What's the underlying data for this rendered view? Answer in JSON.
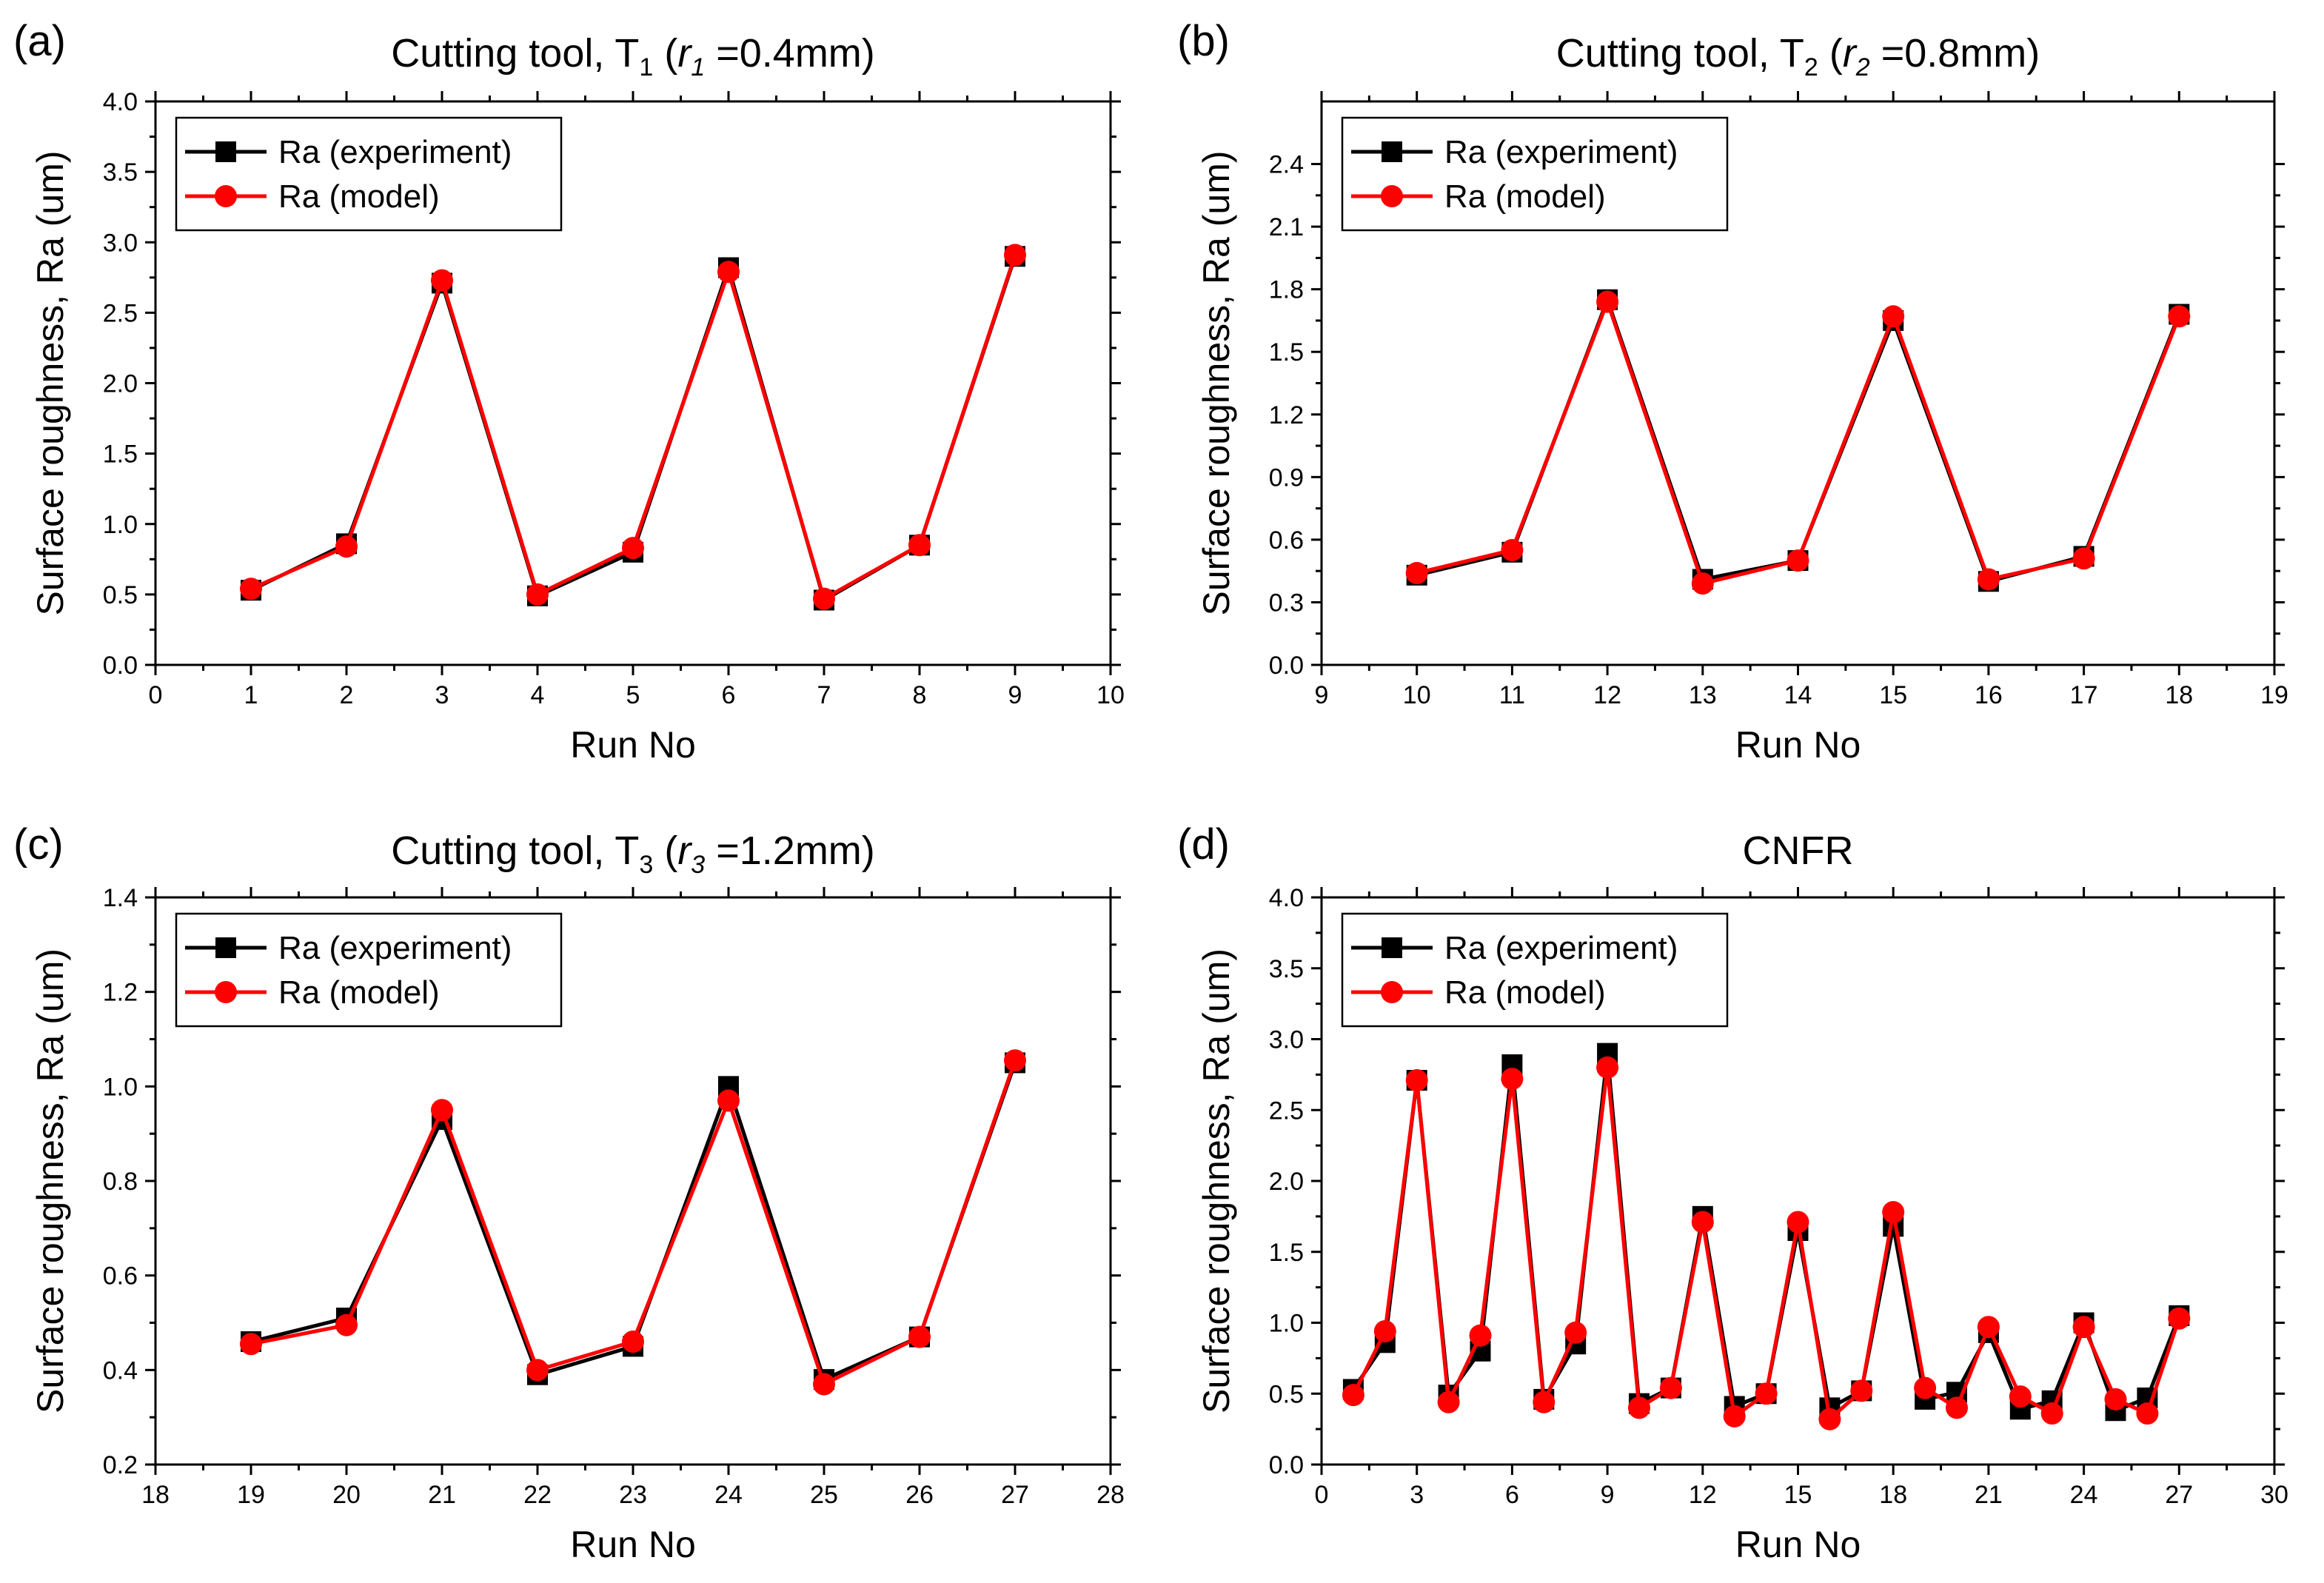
{
  "colors": {
    "experiment": "#000000",
    "model": "#ff0000"
  },
  "legend": {
    "experiment_label": "Ra (experiment)",
    "model_label": "Ra (model)"
  },
  "chart_data": [
    {
      "type": "line",
      "panel_label": "(a)",
      "title": "Cutting tool, T",
      "title_sub": "1",
      "title_paren_open": " (",
      "title_r": "r",
      "title_r_sub": "1",
      "title_rest": " =0.4mm)",
      "xlabel": "Run No",
      "ylabel": "Surface roughness, Ra (um)",
      "xlim": [
        0,
        10
      ],
      "xticks": [
        0,
        1,
        2,
        3,
        4,
        5,
        6,
        7,
        8,
        9,
        10
      ],
      "xtick_labels": [
        "0",
        "1",
        "2",
        "3",
        "4",
        "5",
        "6",
        "7",
        "8",
        "9",
        "10"
      ],
      "ylim": [
        0,
        4.0
      ],
      "yticks": [
        0,
        0.5,
        1.0,
        1.5,
        2.0,
        2.5,
        3.0,
        3.5,
        4.0
      ],
      "ytick_labels": [
        "0.0",
        "0.5",
        "1.0",
        "1.5",
        "2.0",
        "2.5",
        "3.0",
        "3.5",
        "4.0"
      ],
      "legend_position": "top-left",
      "x": [
        1,
        2,
        3,
        4,
        5,
        6,
        7,
        8,
        9
      ],
      "series": [
        {
          "name": "Ra (experiment)",
          "marker": "square",
          "values": [
            0.53,
            0.86,
            2.71,
            0.49,
            0.8,
            2.82,
            0.46,
            0.85,
            2.9
          ]
        },
        {
          "name": "Ra (model)",
          "marker": "circle",
          "values": [
            0.54,
            0.84,
            2.73,
            0.5,
            0.83,
            2.79,
            0.47,
            0.85,
            2.91
          ]
        }
      ]
    },
    {
      "type": "line",
      "panel_label": "(b)",
      "title": "Cutting tool, T",
      "title_sub": "2",
      "title_paren_open": " (",
      "title_r": "r",
      "title_r_sub": "2",
      "title_rest": " =0.8mm)",
      "xlabel": "Run No",
      "ylabel": "Surface roughness, Ra (um)",
      "xlim": [
        9,
        19
      ],
      "xticks": [
        9,
        10,
        11,
        12,
        13,
        14,
        15,
        16,
        17,
        18,
        19
      ],
      "xtick_labels": [
        "9",
        "10",
        "11",
        "12",
        "13",
        "14",
        "15",
        "16",
        "17",
        "18",
        "19"
      ],
      "ylim": [
        0,
        2.7
      ],
      "yticks": [
        0,
        0.3,
        0.6,
        0.9,
        1.2,
        1.5,
        1.8,
        2.1,
        2.4
      ],
      "ytick_labels": [
        "0.0",
        "0.3",
        "0.6",
        "0.9",
        "1.2",
        "1.5",
        "1.8",
        "2.1",
        "2.4"
      ],
      "legend_position": "top-left",
      "x": [
        10,
        11,
        12,
        13,
        14,
        15,
        16,
        17,
        18
      ],
      "series": [
        {
          "name": "Ra (experiment)",
          "marker": "square",
          "values": [
            0.43,
            0.54,
            1.75,
            0.41,
            0.5,
            1.65,
            0.4,
            0.52,
            1.68
          ]
        },
        {
          "name": "Ra (model)",
          "marker": "circle",
          "values": [
            0.44,
            0.55,
            1.74,
            0.39,
            0.5,
            1.67,
            0.41,
            0.51,
            1.67
          ]
        }
      ]
    },
    {
      "type": "line",
      "panel_label": "(c)",
      "title": "Cutting tool, T",
      "title_sub": "3",
      "title_paren_open": " (",
      "title_r": "r",
      "title_r_sub": "3",
      "title_rest": " =1.2mm)",
      "xlabel": "Run No",
      "ylabel": "Surface roughness, Ra (um)",
      "xlim": [
        18,
        28
      ],
      "xticks": [
        18,
        19,
        20,
        21,
        22,
        23,
        24,
        25,
        26,
        27,
        28
      ],
      "xtick_labels": [
        "18",
        "19",
        "20",
        "21",
        "22",
        "23",
        "24",
        "25",
        "26",
        "27",
        "28"
      ],
      "ylim": [
        0.2,
        1.4
      ],
      "yticks": [
        0.2,
        0.4,
        0.6,
        0.8,
        1.0,
        1.2,
        1.4
      ],
      "ytick_labels": [
        "0.2",
        "0.4",
        "0.6",
        "0.8",
        "1.0",
        "1.2",
        "1.4"
      ],
      "legend_position": "top-left",
      "x": [
        19,
        20,
        21,
        22,
        23,
        24,
        25,
        26,
        27
      ],
      "series": [
        {
          "name": "Ra (experiment)",
          "marker": "square",
          "values": [
            0.46,
            0.51,
            0.93,
            0.39,
            0.45,
            1.0,
            0.38,
            0.47,
            1.05
          ]
        },
        {
          "name": "Ra (model)",
          "marker": "circle",
          "values": [
            0.455,
            0.495,
            0.95,
            0.4,
            0.46,
            0.97,
            0.37,
            0.47,
            1.055
          ]
        }
      ]
    },
    {
      "type": "line",
      "panel_label": "(d)",
      "title": "CNFR",
      "xlabel": "Run No",
      "ylabel": "Surface roughness, Ra (um)",
      "xlim": [
        0,
        30
      ],
      "xticks": [
        0,
        3,
        6,
        9,
        12,
        15,
        18,
        21,
        24,
        27,
        30
      ],
      "xtick_labels": [
        "0",
        "3",
        "6",
        "9",
        "12",
        "15",
        "18",
        "21",
        "24",
        "27",
        "30"
      ],
      "ylim": [
        0,
        4.0
      ],
      "yticks": [
        0,
        0.5,
        1.0,
        1.5,
        2.0,
        2.5,
        3.0,
        3.5,
        4.0
      ],
      "ytick_labels": [
        "0.0",
        "0.5",
        "1.0",
        "1.5",
        "2.0",
        "2.5",
        "3.0",
        "3.5",
        "4.0"
      ],
      "legend_position": "top-left",
      "x": [
        1,
        2,
        3,
        4,
        5,
        6,
        7,
        8,
        9,
        10,
        11,
        12,
        13,
        14,
        15,
        16,
        17,
        18,
        19,
        20,
        21,
        22,
        23,
        24,
        25,
        26,
        27
      ],
      "series": [
        {
          "name": "Ra (experiment)",
          "marker": "square",
          "values": [
            0.53,
            0.86,
            2.71,
            0.49,
            0.8,
            2.82,
            0.46,
            0.85,
            2.9,
            0.43,
            0.54,
            1.75,
            0.41,
            0.5,
            1.65,
            0.4,
            0.52,
            1.68,
            0.46,
            0.51,
            0.93,
            0.39,
            0.45,
            1.0,
            0.38,
            0.47,
            1.05
          ]
        },
        {
          "name": "Ra (model)",
          "marker": "circle",
          "values": [
            0.49,
            0.94,
            2.71,
            0.44,
            0.91,
            2.72,
            0.44,
            0.93,
            2.8,
            0.4,
            0.54,
            1.71,
            0.34,
            0.5,
            1.71,
            0.32,
            0.52,
            1.78,
            0.54,
            0.4,
            0.97,
            0.48,
            0.36,
            0.97,
            0.46,
            0.36,
            1.03
          ]
        }
      ]
    }
  ]
}
